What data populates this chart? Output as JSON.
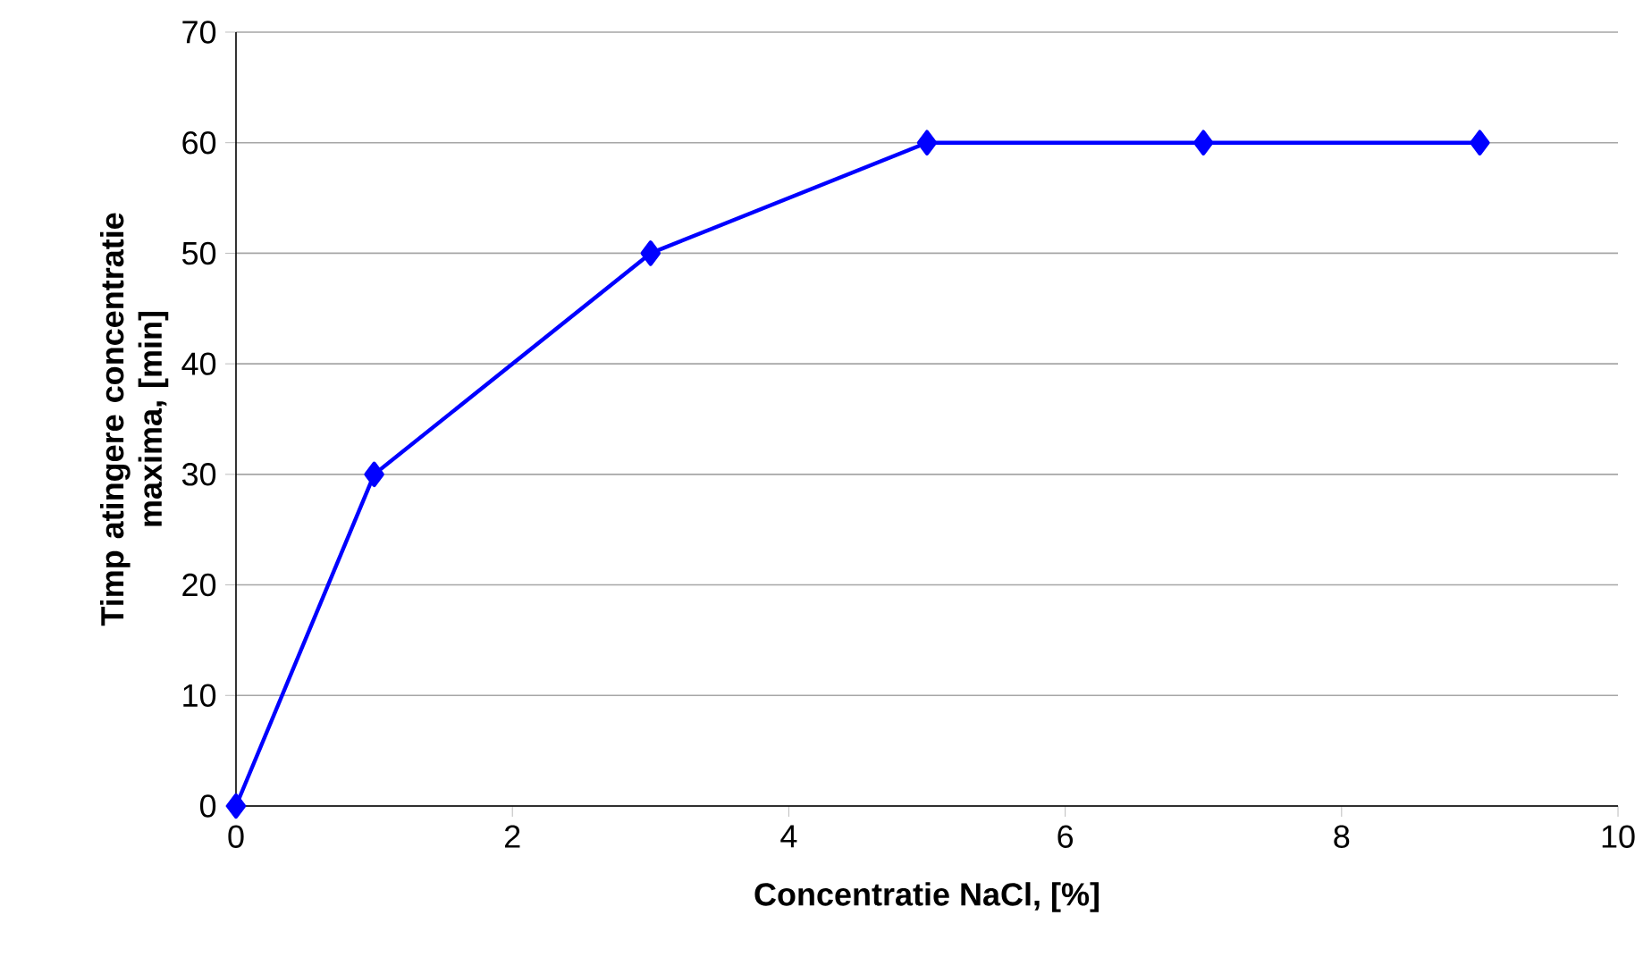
{
  "chart_data": {
    "type": "line",
    "xlabel": "Concentratie NaCl, [%]",
    "ylabel": "Timp atingere concentratie maxima, [min]",
    "x": [
      0,
      1,
      3,
      5,
      7,
      9
    ],
    "series": [
      {
        "color": "#0000ff",
        "values": [
          0,
          30,
          50,
          60,
          60,
          60
        ]
      }
    ],
    "xlim": [
      0,
      10
    ],
    "xticks": [
      0,
      2,
      4,
      6,
      8,
      10
    ],
    "ylim": [
      0,
      70
    ],
    "yticks": [
      0,
      10,
      20,
      30,
      40,
      50,
      60,
      70
    ],
    "grid": "y",
    "marker": "diamond",
    "line_style": "solid"
  }
}
